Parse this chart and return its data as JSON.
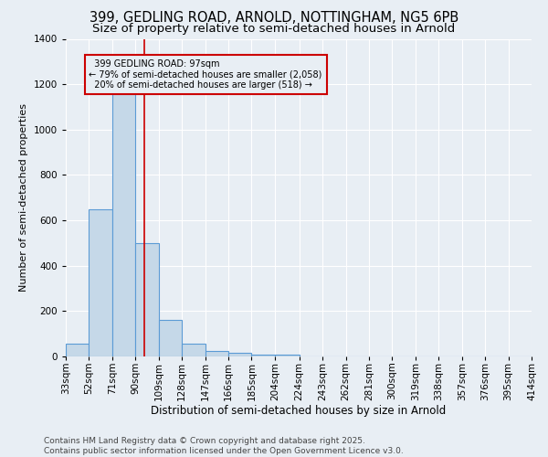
{
  "title1": "399, GEDLING ROAD, ARNOLD, NOTTINGHAM, NG5 6PB",
  "title2": "Size of property relative to semi-detached houses in Arnold",
  "xlabel": "Distribution of semi-detached houses by size in Arnold",
  "ylabel": "Number of semi-detached properties",
  "property_size": 97,
  "property_label": "399 GEDLING ROAD: 97sqm",
  "pct_smaller": 79,
  "pct_larger": 20,
  "n_smaller": 2058,
  "n_larger": 518,
  "bin_edges": [
    33,
    52,
    71,
    90,
    109,
    128,
    147,
    166,
    185,
    204,
    224,
    243,
    262,
    281,
    300,
    319,
    338,
    357,
    376,
    395,
    414
  ],
  "bar_heights": [
    55,
    650,
    1160,
    500,
    160,
    55,
    25,
    15,
    10,
    8,
    0,
    0,
    0,
    0,
    0,
    0,
    0,
    0,
    0,
    0
  ],
  "bar_color": "#c5d8e8",
  "bar_edge_color": "#5b9bd5",
  "vline_color": "#cc0000",
  "vline_x": 97,
  "annotation_box_color": "#cc0000",
  "background_color": "#e8eef4",
  "ylim": [
    0,
    1400
  ],
  "yticks": [
    0,
    200,
    400,
    600,
    800,
    1000,
    1200,
    1400
  ],
  "footer_text": "Contains HM Land Registry data © Crown copyright and database right 2025.\nContains public sector information licensed under the Open Government Licence v3.0.",
  "title1_fontsize": 10.5,
  "title2_fontsize": 9.5,
  "xlabel_fontsize": 8.5,
  "ylabel_fontsize": 8,
  "tick_fontsize": 7.5,
  "footer_fontsize": 6.5
}
